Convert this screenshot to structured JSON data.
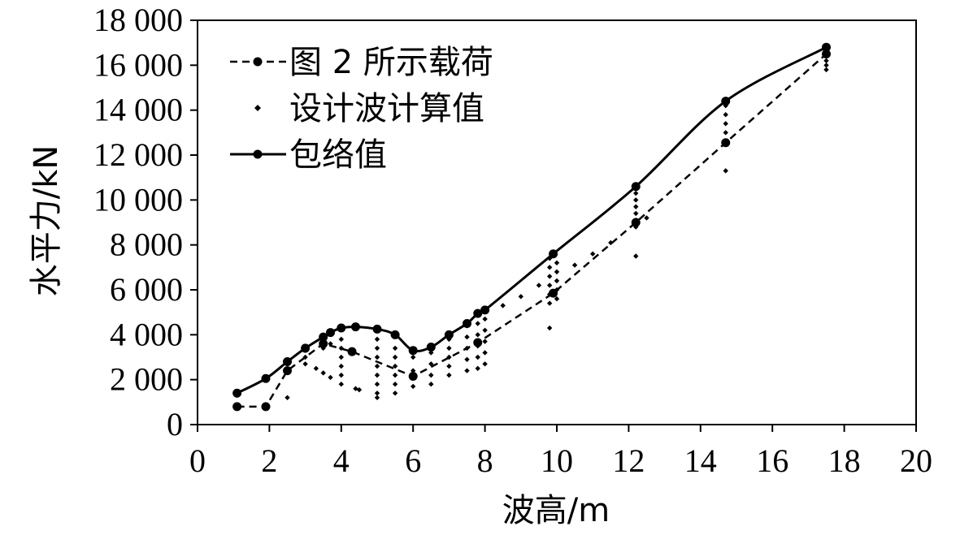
{
  "chart_data": {
    "type": "line",
    "xlabel": "波高/m",
    "ylabel": "水平力/kN",
    "xlim": [
      0,
      20
    ],
    "ylim": [
      0,
      18000
    ],
    "x_ticks": [
      0,
      2,
      4,
      6,
      8,
      10,
      12,
      14,
      16,
      18,
      20
    ],
    "x_tick_labels": [
      "0",
      "2",
      "4",
      "6",
      "8",
      "10",
      "12",
      "14",
      "16",
      "18",
      "20"
    ],
    "y_ticks": [
      0,
      2000,
      4000,
      6000,
      8000,
      10000,
      12000,
      14000,
      16000,
      18000
    ],
    "y_tick_labels": [
      "0",
      "2 000",
      "4 000",
      "6 000",
      "8 000",
      "10 000",
      "12 000",
      "14 000",
      "16 000",
      "18 000"
    ],
    "grid": false,
    "legend_position": "top-left",
    "series": [
      {
        "name": "图 2 所示载荷",
        "style": "dashed-line-circle-markers",
        "points": [
          [
            1.1,
            800
          ],
          [
            1.9,
            800
          ],
          [
            2.5,
            2400
          ],
          [
            3.5,
            3600
          ],
          [
            4.3,
            3250
          ],
          [
            6.0,
            2150
          ],
          [
            7.8,
            3650
          ],
          [
            9.9,
            5850
          ],
          [
            12.2,
            9000
          ],
          [
            14.7,
            12550
          ],
          [
            17.5,
            16500
          ]
        ]
      },
      {
        "name": "设计波计算值",
        "style": "small-diamond-markers",
        "points": [
          [
            1.1,
            1300
          ],
          [
            1.9,
            2000
          ],
          [
            2.5,
            1200
          ],
          [
            2.5,
            2400
          ],
          [
            2.5,
            2700
          ],
          [
            3.0,
            2700
          ],
          [
            3.0,
            3000
          ],
          [
            3.0,
            3300
          ],
          [
            3.3,
            2500
          ],
          [
            3.5,
            2300
          ],
          [
            3.5,
            3400
          ],
          [
            3.5,
            3700
          ],
          [
            3.7,
            2100
          ],
          [
            3.7,
            3600
          ],
          [
            4.0,
            1800
          ],
          [
            4.0,
            2200
          ],
          [
            4.0,
            2600
          ],
          [
            4.0,
            3000
          ],
          [
            4.0,
            3400
          ],
          [
            4.0,
            3800
          ],
          [
            4.4,
            1600
          ],
          [
            4.5,
            1550
          ],
          [
            5.0,
            1200
          ],
          [
            5.0,
            1400
          ],
          [
            5.0,
            1800
          ],
          [
            5.0,
            2200
          ],
          [
            5.0,
            2600
          ],
          [
            5.0,
            3000
          ],
          [
            5.0,
            3400
          ],
          [
            5.0,
            3800
          ],
          [
            5.5,
            1400
          ],
          [
            5.5,
            1800
          ],
          [
            5.5,
            2200
          ],
          [
            5.5,
            2600
          ],
          [
            5.5,
            3000
          ],
          [
            5.5,
            3400
          ],
          [
            6.0,
            1700
          ],
          [
            6.0,
            2400
          ],
          [
            6.0,
            3000
          ],
          [
            6.5,
            1800
          ],
          [
            6.5,
            2200
          ],
          [
            6.5,
            2700
          ],
          [
            6.5,
            3200
          ],
          [
            7.0,
            2200
          ],
          [
            7.0,
            2600
          ],
          [
            7.0,
            3000
          ],
          [
            7.0,
            3400
          ],
          [
            7.0,
            3800
          ],
          [
            7.5,
            2400
          ],
          [
            7.5,
            2900
          ],
          [
            7.5,
            3400
          ],
          [
            7.5,
            3900
          ],
          [
            7.5,
            4400
          ],
          [
            7.8,
            2500
          ],
          [
            7.8,
            3000
          ],
          [
            7.8,
            3500
          ],
          [
            7.8,
            4000
          ],
          [
            7.8,
            4500
          ],
          [
            8.0,
            2700
          ],
          [
            8.0,
            3200
          ],
          [
            8.0,
            3700
          ],
          [
            8.0,
            4200
          ],
          [
            8.0,
            4700
          ],
          [
            8.5,
            5300
          ],
          [
            9.0,
            5700
          ],
          [
            9.5,
            6200
          ],
          [
            9.8,
            4300
          ],
          [
            9.8,
            5400
          ],
          [
            9.8,
            5800
          ],
          [
            9.8,
            6200
          ],
          [
            9.8,
            6600
          ],
          [
            9.8,
            7000
          ],
          [
            9.8,
            7400
          ],
          [
            10.0,
            5600
          ],
          [
            10.0,
            6000
          ],
          [
            10.0,
            6400
          ],
          [
            10.0,
            6800
          ],
          [
            10.0,
            7200
          ],
          [
            10.5,
            7100
          ],
          [
            11.0,
            7600
          ],
          [
            11.5,
            8100
          ],
          [
            12.2,
            7500
          ],
          [
            12.2,
            8800
          ],
          [
            12.2,
            9100
          ],
          [
            12.2,
            9400
          ],
          [
            12.2,
            9700
          ],
          [
            12.2,
            10000
          ],
          [
            12.2,
            10300
          ],
          [
            12.5,
            9200
          ],
          [
            14.7,
            11300
          ],
          [
            14.7,
            12600
          ],
          [
            14.7,
            13000
          ],
          [
            14.7,
            13400
          ],
          [
            14.7,
            13800
          ],
          [
            14.7,
            14200
          ],
          [
            17.5,
            15800
          ],
          [
            17.5,
            16000
          ],
          [
            17.5,
            16200
          ],
          [
            17.5,
            16400
          ],
          [
            17.5,
            16600
          ],
          [
            17.5,
            16800
          ]
        ]
      },
      {
        "name": "包络值",
        "style": "solid-line-circle-markers",
        "points": [
          [
            1.1,
            1400
          ],
          [
            1.9,
            2050
          ],
          [
            2.5,
            2800
          ],
          [
            3.0,
            3400
          ],
          [
            3.5,
            3900
          ],
          [
            3.7,
            4100
          ],
          [
            4.0,
            4300
          ],
          [
            4.4,
            4350
          ],
          [
            5.0,
            4250
          ],
          [
            5.5,
            4000
          ],
          [
            6.0,
            3300
          ],
          [
            6.5,
            3450
          ],
          [
            7.0,
            4000
          ],
          [
            7.5,
            4500
          ],
          [
            7.8,
            4950
          ],
          [
            8.0,
            5100
          ],
          [
            9.9,
            7600
          ],
          [
            12.2,
            10600
          ],
          [
            14.7,
            14400
          ],
          [
            17.5,
            16800
          ]
        ]
      }
    ]
  }
}
